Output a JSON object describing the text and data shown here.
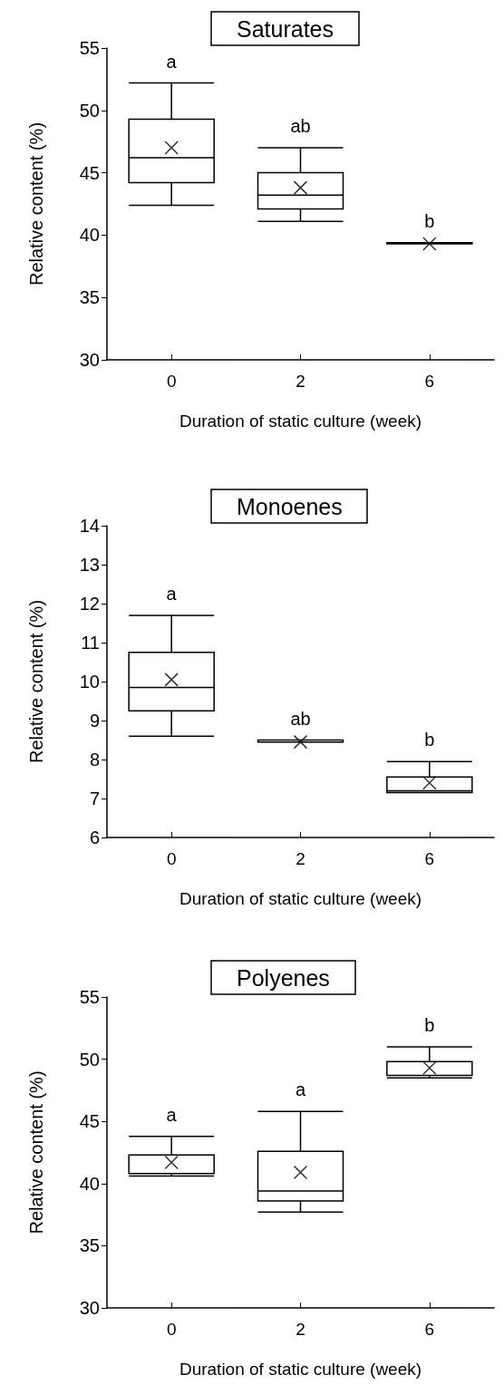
{
  "chart_data": [
    {
      "type": "box",
      "title": "Saturates",
      "xlabel": "Duration of static culture (week)",
      "ylabel": "Relative content (%)",
      "categories": [
        "0",
        "2",
        "6"
      ],
      "marker": "cross",
      "boxes": [
        {
          "low": 42.4,
          "q1": 44.2,
          "median": 46.2,
          "q3": 49.3,
          "high": 52.2,
          "mean": 47.0
        },
        {
          "low": 41.1,
          "q1": 42.1,
          "median": 43.2,
          "q3": 45.0,
          "high": 47.0,
          "mean": 43.8
        },
        {
          "low": 39.3,
          "q1": 39.3,
          "median": 39.3,
          "q3": 39.4,
          "high": 39.4,
          "mean": 39.3
        }
      ],
      "ylim": [
        30,
        55
      ],
      "yticks": [
        30,
        35,
        40,
        45,
        50,
        55
      ],
      "annotations": [
        {
          "text": "a",
          "x": "0",
          "y": 52.2
        },
        {
          "text": "ab",
          "x": "2",
          "y": 47.0
        },
        {
          "text": "b",
          "x": "6",
          "y": 39.4
        }
      ]
    },
    {
      "type": "box",
      "title": "Monoenes",
      "xlabel": "Duration of static culture (week)",
      "ylabel": "Relative content (%)",
      "categories": [
        "0",
        "2",
        "6"
      ],
      "marker": "cross",
      "boxes": [
        {
          "low": 8.6,
          "q1": 9.25,
          "median": 9.85,
          "q3": 10.75,
          "high": 11.7,
          "mean": 10.05
        },
        {
          "low": 8.45,
          "q1": 8.45,
          "median": 8.5,
          "q3": 8.5,
          "high": 8.5,
          "mean": 8.45
        },
        {
          "low": 7.15,
          "q1": 7.15,
          "median": 7.2,
          "q3": 7.55,
          "high": 7.95,
          "mean": 7.4
        }
      ],
      "ylim": [
        6,
        14
      ],
      "yticks": [
        6,
        7,
        8,
        9,
        10,
        11,
        12,
        13,
        14
      ],
      "annotations": [
        {
          "text": "a",
          "x": "0",
          "y": 11.7
        },
        {
          "text": "ab",
          "x": "2",
          "y": 8.5
        },
        {
          "text": "b",
          "x": "6",
          "y": 7.95
        }
      ]
    },
    {
      "type": "box",
      "title": "Polyenes",
      "xlabel": "Duration of static culture (week)",
      "ylabel": "Relative content (%)",
      "categories": [
        "0",
        "2",
        "6"
      ],
      "marker": "cross",
      "boxes": [
        {
          "low": 40.6,
          "q1": 40.8,
          "median": 40.8,
          "q3": 42.3,
          "high": 43.8,
          "mean": 41.7
        },
        {
          "low": 37.7,
          "q1": 38.6,
          "median": 39.4,
          "q3": 42.6,
          "high": 45.8,
          "mean": 40.9
        },
        {
          "low": 48.5,
          "q1": 48.7,
          "median": 48.7,
          "q3": 49.8,
          "high": 51.0,
          "mean": 49.3
        }
      ],
      "ylim": [
        30,
        55
      ],
      "yticks": [
        30,
        35,
        40,
        45,
        50,
        55
      ],
      "annotations": [
        {
          "text": "a",
          "x": "0",
          "y": 43.8
        },
        {
          "text": "a",
          "x": "2",
          "y": 45.8
        },
        {
          "text": "b",
          "x": "6",
          "y": 51.0
        }
      ]
    }
  ]
}
